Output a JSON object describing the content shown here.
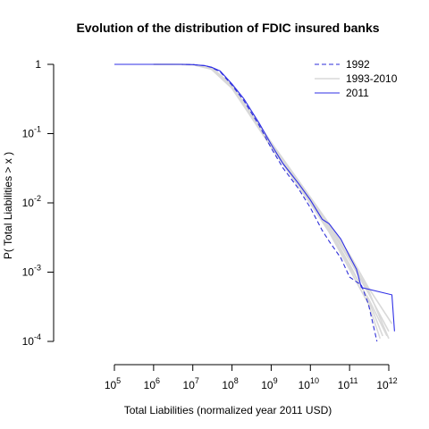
{
  "chart_data": {
    "type": "line",
    "title": "Evolution of the distribution of FDIC insured banks",
    "xlabel": "Total Liabilities (normalized year 2011 USD)",
    "ylabel": "P( Total Liabilities > x )",
    "x_scale": "log10",
    "y_scale": "log10",
    "xlim": [
      100000,
      1000000000000
    ],
    "ylim": [
      0.0001,
      1
    ],
    "x_ticks": [
      {
        "value": 100000,
        "base": "10",
        "exp": "5"
      },
      {
        "value": 1000000,
        "base": "10",
        "exp": "6"
      },
      {
        "value": 10000000,
        "base": "10",
        "exp": "7"
      },
      {
        "value": 100000000,
        "base": "10",
        "exp": "8"
      },
      {
        "value": 1000000000,
        "base": "10",
        "exp": "9"
      },
      {
        "value": 10000000000,
        "base": "10",
        "exp": "10"
      },
      {
        "value": 100000000000,
        "base": "10",
        "exp": "11"
      },
      {
        "value": 1000000000000,
        "base": "10",
        "exp": "12"
      }
    ],
    "y_ticks": [
      {
        "value": 1,
        "base": "1",
        "exp": ""
      },
      {
        "value": 0.1,
        "base": "10",
        "exp": "-1"
      },
      {
        "value": 0.01,
        "base": "10",
        "exp": "-2"
      },
      {
        "value": 0.001,
        "base": "10",
        "exp": "-3"
      },
      {
        "value": 0.0001,
        "base": "10",
        "exp": "-4"
      }
    ],
    "legend_position": "top-right",
    "series": [
      {
        "name": "1993-2010",
        "color": "#d9d9d9",
        "style": "solid",
        "lines": [
          {
            "x": [
              1000000,
              10000000,
              30000000,
              100000000,
              1000000000,
              10000000000,
              30000000000,
              100000000000,
              300000000000,
              1200000000000
            ],
            "y": [
              1,
              0.99,
              0.9,
              0.5,
              0.075,
              0.012,
              0.005,
              0.0018,
              0.0006,
              0.00018
            ]
          },
          {
            "x": [
              1000000,
              10000000,
              30000000,
              100000000,
              1000000000,
              10000000000,
              30000000000,
              100000000000,
              300000000000,
              1000000000000
            ],
            "y": [
              1,
              0.99,
              0.88,
              0.48,
              0.07,
              0.011,
              0.0045,
              0.0015,
              0.0005,
              0.00014
            ]
          },
          {
            "x": [
              1000000,
              10000000,
              30000000,
              100000000,
              1000000000,
              10000000000,
              30000000000,
              100000000000,
              300000000000,
              900000000000
            ],
            "y": [
              1,
              0.99,
              0.86,
              0.46,
              0.066,
              0.01,
              0.004,
              0.0012,
              0.00042,
              0.00012
            ]
          },
          {
            "x": [
              1000000,
              10000000,
              30000000,
              100000000,
              1000000000,
              10000000000,
              30000000000,
              100000000000,
              300000000000,
              700000000000
            ],
            "y": [
              1,
              0.99,
              0.87,
              0.47,
              0.068,
              0.0105,
              0.0042,
              0.0013,
              0.0004,
              0.00012
            ]
          },
          {
            "x": [
              1000000,
              10000000,
              30000000,
              100000000,
              1000000000,
              10000000000,
              30000000000,
              100000000000,
              300000000000,
              1000000000000
            ],
            "y": [
              1,
              0.99,
              0.89,
              0.49,
              0.072,
              0.0115,
              0.0048,
              0.0016,
              0.00055,
              0.00011
            ]
          },
          {
            "x": [
              1000000,
              10000000,
              30000000,
              100000000,
              1000000000,
              10000000000,
              30000000000,
              100000000000,
              300000000000,
              600000000000
            ],
            "y": [
              1,
              0.99,
              0.85,
              0.45,
              0.064,
              0.0098,
              0.0038,
              0.0011,
              0.00035,
              0.00011
            ]
          }
        ]
      },
      {
        "name": "1992",
        "color": "#2e2ed8",
        "style": "dashed",
        "lines": [
          {
            "x": [
              100000,
              1000000,
              5000000,
              10000000,
              20000000,
              30000000,
              50000000,
              100000000,
              200000000,
              500000000,
              1000000000,
              2000000000,
              5000000000,
              10000000000,
              20000000000,
              30000000000,
              60000000000,
              100000000000,
              200000000000,
              300000000000,
              500000000000
            ],
            "y": [
              1,
              1,
              1,
              0.99,
              0.96,
              0.9,
              0.78,
              0.5,
              0.3,
              0.13,
              0.062,
              0.032,
              0.016,
              0.0085,
              0.004,
              0.0028,
              0.0016,
              0.00085,
              0.00065,
              0.00035,
              0.0001
            ]
          }
        ]
      },
      {
        "name": "2011",
        "color": "#2f2fe6",
        "style": "solid",
        "lines": [
          {
            "x": [
              100000,
              1000000,
              5000000,
              10000000,
              20000000,
              30000000,
              50000000,
              100000000,
              200000000,
              500000000,
              1000000000,
              2000000000,
              5000000000,
              10000000000,
              20000000000,
              30000000000,
              60000000000,
              100000000000,
              150000000000,
              200000000000,
              1200000000000,
              1400000000000
            ],
            "y": [
              1,
              1,
              1,
              0.99,
              0.96,
              0.91,
              0.8,
              0.52,
              0.32,
              0.14,
              0.07,
              0.037,
              0.019,
              0.011,
              0.0058,
              0.005,
              0.003,
              0.0017,
              0.0011,
              0.0006,
              0.00047,
              0.00014
            ]
          }
        ]
      }
    ],
    "legend": [
      {
        "label": "1992",
        "color": "#2e2ed8",
        "style": "dashed"
      },
      {
        "label": "1993-2010",
        "color": "#d9d9d9",
        "style": "solid"
      },
      {
        "label": "2011",
        "color": "#2f2fe6",
        "style": "solid"
      }
    ]
  }
}
